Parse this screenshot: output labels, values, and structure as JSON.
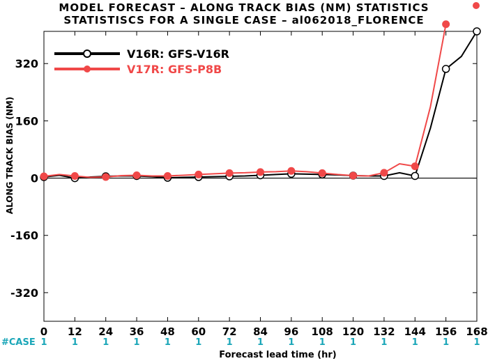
{
  "title_line1": "MODEL FORECAST – ALONG TRACK BIAS (NM) STATISTICS",
  "title_line2": "STATISTISCS FOR A SINGLE CASE – al062018_FLORENCE",
  "case_label": "#CASE",
  "chart_data": {
    "type": "line",
    "xlabel": "Forecast lead time (hr)",
    "ylabel": "ALONG TRACK BIAS (NM)",
    "x_ticks": [
      0,
      12,
      24,
      36,
      48,
      60,
      72,
      84,
      96,
      108,
      120,
      132,
      144,
      156,
      168
    ],
    "y_ticks": [
      -320,
      -160,
      0,
      160,
      320
    ],
    "xlim": [
      0,
      168
    ],
    "ylim": [
      -400,
      410
    ],
    "grid": false,
    "legend_position": "top-left",
    "case_counts": [
      1,
      1,
      1,
      1,
      1,
      1,
      1,
      1,
      1,
      1,
      1,
      1,
      1,
      1,
      1
    ],
    "series": [
      {
        "name": "V16R: GFS-V16R",
        "color": "#000000",
        "marker": "open-circle",
        "x": [
          0,
          6,
          12,
          18,
          24,
          30,
          36,
          42,
          48,
          54,
          60,
          66,
          72,
          78,
          84,
          90,
          96,
          102,
          108,
          114,
          120,
          126,
          132,
          138,
          144,
          150,
          156,
          162,
          168
        ],
        "y": [
          3,
          8,
          0,
          3,
          5,
          6,
          6,
          4,
          1,
          2,
          3,
          4,
          5,
          6,
          8,
          10,
          12,
          11,
          10,
          9,
          7,
          6,
          6,
          15,
          6,
          140,
          305,
          340,
          410
        ],
        "marker_x": [
          0,
          12,
          24,
          36,
          48,
          60,
          72,
          84,
          96,
          108,
          120,
          132,
          144,
          156,
          168
        ]
      },
      {
        "name": "V17R: GFS-P8B",
        "color": "#f04848",
        "marker": "filled-circle",
        "x": [
          0,
          6,
          12,
          18,
          24,
          30,
          36,
          42,
          48,
          54,
          60,
          66,
          72,
          78,
          84,
          90,
          96,
          102,
          108,
          114,
          120,
          126,
          132,
          138,
          144,
          150,
          156
        ],
        "y": [
          5,
          10,
          6,
          2,
          3,
          7,
          8,
          6,
          6,
          8,
          10,
          12,
          14,
          15,
          17,
          18,
          20,
          18,
          14,
          10,
          7,
          6,
          15,
          40,
          33,
          200,
          430
        ],
        "marker_x": [
          0,
          12,
          24,
          36,
          48,
          60,
          72,
          84,
          96,
          108,
          120,
          132,
          144,
          156
        ]
      }
    ]
  }
}
